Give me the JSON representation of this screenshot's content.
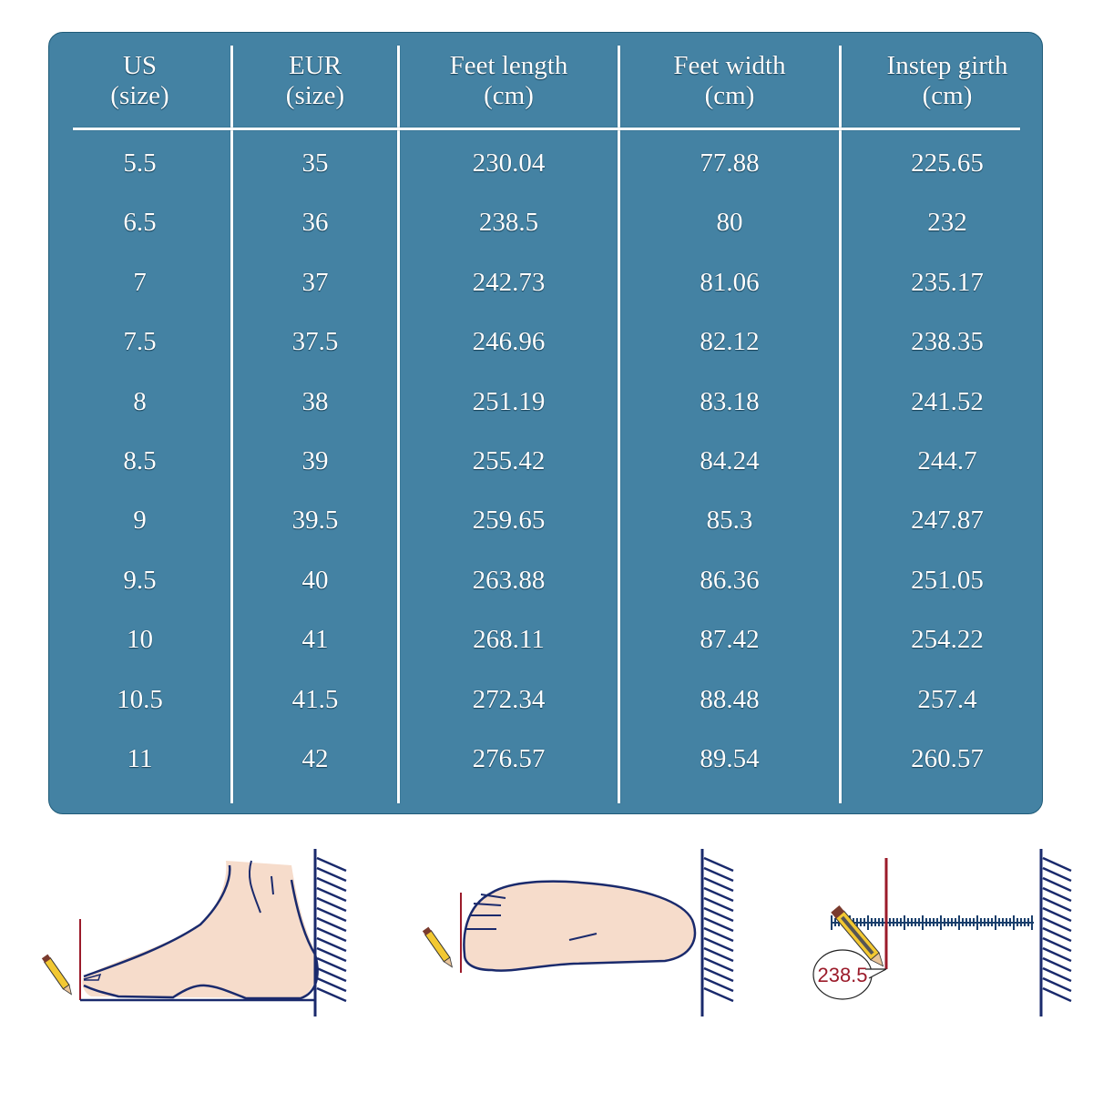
{
  "table": {
    "columns": [
      {
        "title": "US",
        "unit": "(size)"
      },
      {
        "title": "EUR",
        "unit": "(size)"
      },
      {
        "title": "Feet length",
        "unit": "(cm)"
      },
      {
        "title": "Feet width",
        "unit": "(cm)"
      },
      {
        "title": "Instep girth",
        "unit": "(cm)"
      }
    ],
    "rows": [
      [
        "5.5",
        "35",
        "230.04",
        "77.88",
        "225.65"
      ],
      [
        "6.5",
        "36",
        "238.5",
        "80",
        "232"
      ],
      [
        "7",
        "37",
        "242.73",
        "81.06",
        "235.17"
      ],
      [
        "7.5",
        "37.5",
        "246.96",
        "82.12",
        "238.35"
      ],
      [
        "8",
        "38",
        "251.19",
        "83.18",
        "241.52"
      ],
      [
        "8.5",
        "39",
        "255.42",
        "84.24",
        "244.7"
      ],
      [
        "9",
        "39.5",
        "259.65",
        "85.3",
        "247.87"
      ],
      [
        "9.5",
        "40",
        "263.88",
        "86.36",
        "251.05"
      ],
      [
        "10",
        "41",
        "268.11",
        "87.42",
        "254.22"
      ],
      [
        "10.5",
        "41.5",
        "272.34",
        "88.48",
        "257.4"
      ],
      [
        "11",
        "42",
        "276.57",
        "89.54",
        "260.57"
      ]
    ]
  },
  "illustrations": {
    "step1": "foot-side-view-length",
    "step2": "foot-top-view-width",
    "step3": {
      "label": "ruler-measurement",
      "reading": "238.5"
    }
  },
  "colors": {
    "panel_bg": "#4482a3",
    "panel_border": "#1f5b78",
    "text": "#ffffff",
    "outline_navy": "#1a2a6c",
    "marker_red": "#9b1b2a",
    "skin": "#f6dccb"
  }
}
